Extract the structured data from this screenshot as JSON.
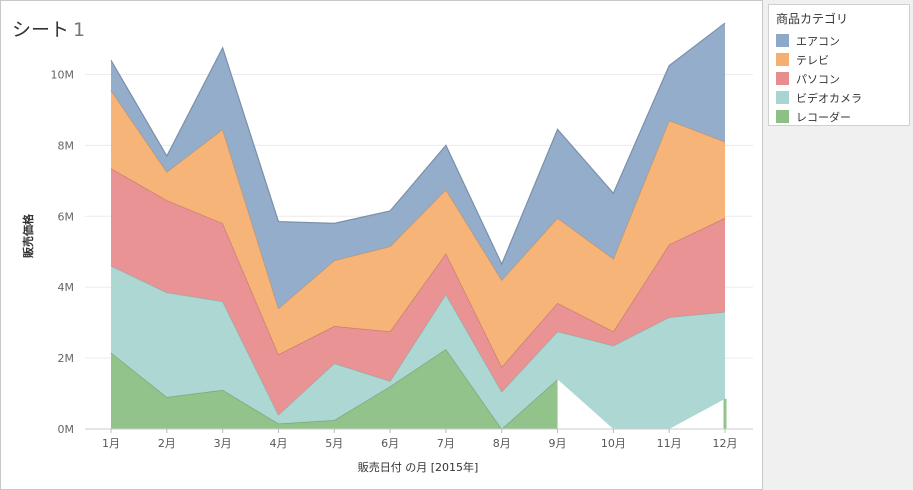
{
  "sheet": {
    "title": "シート",
    "number": "1"
  },
  "legend": {
    "title": "商品カテゴリ"
  },
  "chart_data": {
    "type": "area",
    "stacked": true,
    "title": "",
    "xlabel": "販売日付 の月 [2015年]",
    "ylabel": "販売価格",
    "categories": [
      "1月",
      "2月",
      "3月",
      "4月",
      "5月",
      "6月",
      "7月",
      "8月",
      "9月",
      "10月",
      "11月",
      "12月"
    ],
    "ylim": [
      0,
      11000000
    ],
    "yticks": [
      0,
      2000000,
      4000000,
      6000000,
      8000000,
      10000000
    ],
    "ytick_labels": [
      "0M",
      "2M",
      "4M",
      "6M",
      "8M",
      "10M"
    ],
    "grid": true,
    "legend_position": "right",
    "series": [
      {
        "name": "レコーダー",
        "color": "#8cc084",
        "values": [
          2150000,
          900000,
          1100000,
          150000,
          250000,
          1200000,
          2250000,
          0,
          1400000,
          null,
          null,
          850000
        ]
      },
      {
        "name": "ビデオカメラ",
        "color": "#a8d5d1",
        "values": [
          2450000,
          2950000,
          2500000,
          250000,
          1600000,
          150000,
          1550000,
          1050000,
          1350000,
          2350000,
          3150000,
          2450000
        ]
      },
      {
        "name": "パソコン",
        "color": "#e88d8f",
        "values": [
          2750000,
          2600000,
          2200000,
          1700000,
          1050000,
          1400000,
          1150000,
          700000,
          800000,
          400000,
          2050000,
          2650000
        ]
      },
      {
        "name": "テレビ",
        "color": "#f5b071",
        "values": [
          2200000,
          800000,
          2650000,
          1300000,
          1850000,
          2400000,
          1800000,
          2450000,
          2400000,
          2050000,
          3500000,
          2150000
        ]
      },
      {
        "name": "エアコン",
        "color": "#8ea9c8",
        "values": [
          850000,
          450000,
          2300000,
          2450000,
          1050000,
          1000000,
          1250000,
          450000,
          2500000,
          1850000,
          1550000,
          3350000
        ]
      }
    ]
  }
}
